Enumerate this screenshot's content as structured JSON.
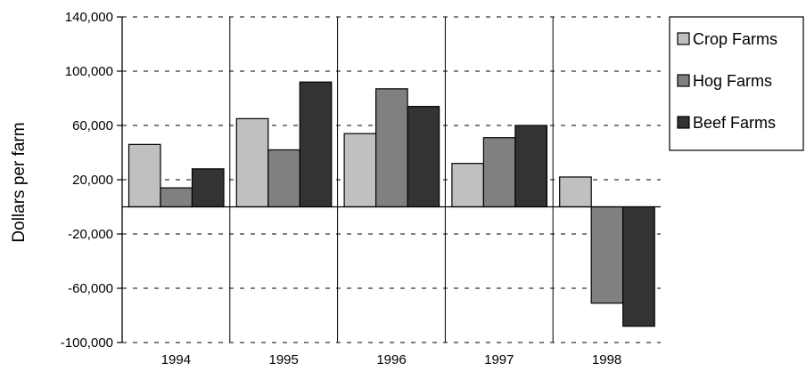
{
  "chart_data": {
    "type": "bar",
    "title": "",
    "xlabel": "",
    "ylabel": "Dollars per farm",
    "categories": [
      "1994",
      "1995",
      "1996",
      "1997",
      "1998"
    ],
    "series": [
      {
        "name": "Crop Farms",
        "color": "#c0c0c0",
        "values": [
          46000,
          65000,
          54000,
          32000,
          22000
        ]
      },
      {
        "name": "Hog Farms",
        "color": "#808080",
        "values": [
          14000,
          42000,
          87000,
          51000,
          -71000
        ]
      },
      {
        "name": "Beef Farms",
        "color": "#333333",
        "values": [
          28000,
          92000,
          74000,
          60000,
          -88000
        ]
      }
    ],
    "ylim": [
      -100000,
      140000
    ],
    "yticks": [
      -100000,
      -60000,
      -20000,
      20000,
      60000,
      100000,
      140000
    ],
    "ytick_labels": [
      "-100,000",
      "-60,000",
      "-20,000",
      "20,000",
      "60,000",
      "100,000",
      "140,000"
    ],
    "grid": "horizontal dashed",
    "legend": "right"
  }
}
